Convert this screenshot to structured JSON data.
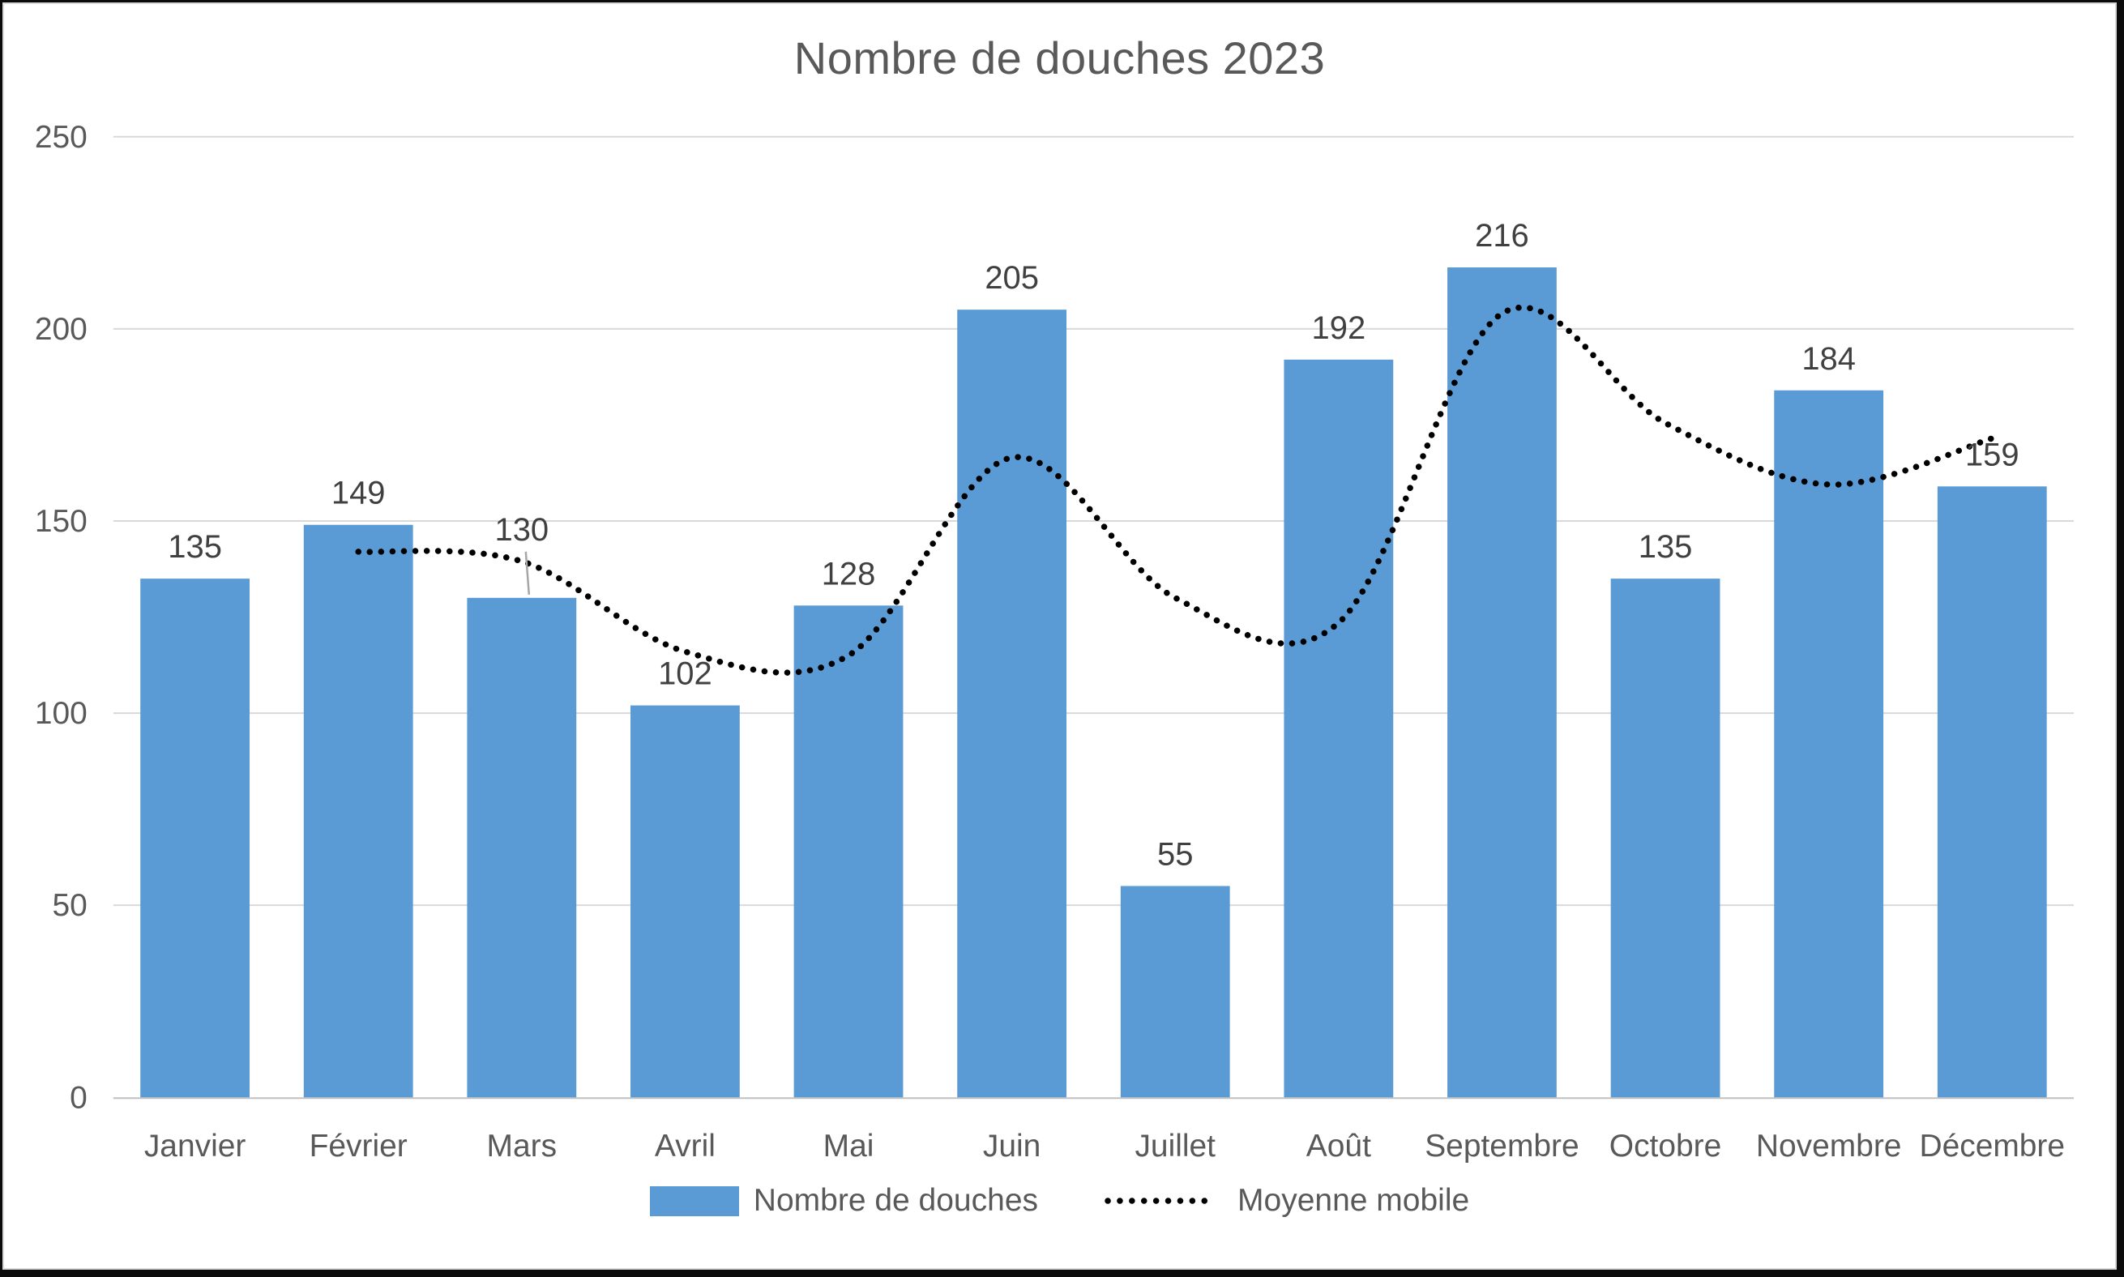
{
  "chart_data": {
    "type": "bar",
    "title": "Nombre de douches 2023",
    "categories": [
      "Janvier",
      "Février",
      "Mars",
      "Avril",
      "Mai",
      "Juin",
      "Juillet",
      "Août",
      "Septembre",
      "Octobre",
      "Novembre",
      "Décembre"
    ],
    "series": [
      {
        "name": "Nombre de douches",
        "type": "bar",
        "color": "#5B9BD5",
        "values": [
          135,
          149,
          130,
          102,
          128,
          205,
          55,
          192,
          216,
          135,
          184,
          159
        ],
        "data_labels_visible": true
      },
      {
        "name": "Moyenne mobile",
        "type": "line",
        "line_style": "dotted",
        "smooth": true,
        "color": "#000000",
        "values": [
          null,
          142,
          139.5,
          116,
          115,
          166.5,
          130,
          123.5,
          204,
          175.5,
          159.5,
          171.5
        ]
      }
    ],
    "xlabel": "",
    "ylabel": "",
    "ylim": [
      0,
      250
    ],
    "yticks": [
      0,
      50,
      100,
      150,
      200,
      250
    ],
    "grid": true,
    "legend_position": "bottom",
    "label_adjustments": [
      {
        "index": 2,
        "dy": -45,
        "leader": true
      }
    ]
  },
  "legend": {
    "items": [
      {
        "label": "Nombre de douches",
        "swatch": "bar",
        "color": "#5B9BD5"
      },
      {
        "label": "Moyenne mobile",
        "swatch": "dotted-line",
        "color": "#000000"
      }
    ]
  },
  "colors": {
    "background": "#FFFFFF",
    "frame": "#0B0B0B",
    "chart_border": "#D9D9D9",
    "grid": "#D9D9D9",
    "axis": "#C0C0C0",
    "text": "#595959",
    "data_label": "#404040",
    "bar": "#5B9BD5",
    "line": "#000000",
    "leader": "#A6A6A6"
  }
}
